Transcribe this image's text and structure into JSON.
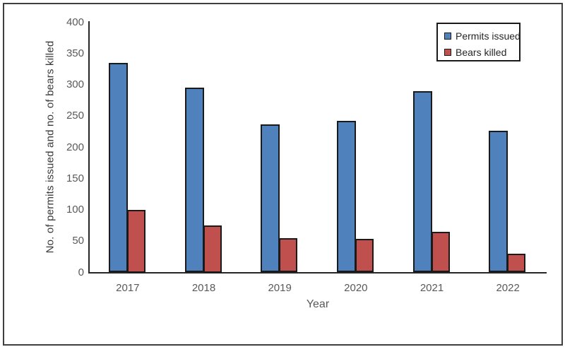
{
  "figure": {
    "background": "#ffffff",
    "border_color": "#3f3f3f"
  },
  "chart_data": {
    "type": "bar",
    "title": "",
    "categories": [
      "2017",
      "2018",
      "2019",
      "2020",
      "2021",
      "2022"
    ],
    "series": [
      {
        "name": "Permits issued",
        "color": "#4f81bd",
        "values": [
          335,
          295,
          237,
          242,
          290,
          226
        ]
      },
      {
        "name": "Bears killed",
        "color": "#c0504d",
        "values": [
          100,
          75,
          55,
          54,
          65,
          30
        ]
      }
    ],
    "xlabel": "Year",
    "ylabel": "No. of permits issued and no. of bears killed",
    "ylim": [
      0,
      400
    ],
    "ytick_step": 50,
    "ytick_labels": [
      "0",
      "50",
      "100",
      "150",
      "200",
      "250",
      "300",
      "350",
      "400"
    ],
    "grid": false,
    "legend_position": "top-right",
    "bar_border_color": "#1a1a1a",
    "axis_color": "#262626",
    "tick_label_color": "#595959"
  }
}
